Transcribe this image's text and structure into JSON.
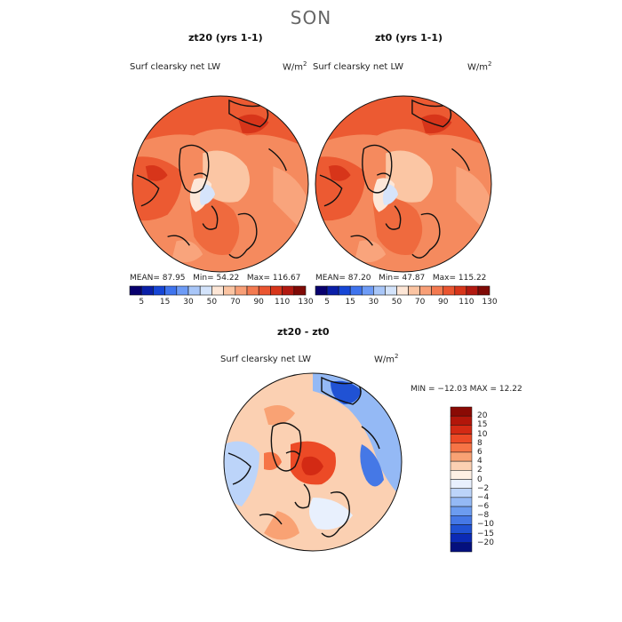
{
  "main_title": "SON",
  "panels": [
    {
      "title": "zt20 (yrs 1-1)",
      "label": "Surf clearsky net LW",
      "units": "W/m",
      "units_sup": "2",
      "stats": {
        "mean_label": "MEAN=",
        "mean": "87.95",
        "min_label": "Min=",
        "min": "54.22",
        "max_label": "Max=",
        "max": "116.67"
      }
    },
    {
      "title": "zt0 (yrs 1-1)",
      "label": "Surf clearsky net LW",
      "units": "W/m",
      "units_sup": "2",
      "stats": {
        "mean_label": "MEAN=",
        "mean": "87.20",
        "min_label": "Min=",
        "min": "47.87",
        "max_label": "Max=",
        "max": "115.22"
      }
    }
  ],
  "abs_colorbar": {
    "colors": [
      "#08006e",
      "#0a1fa8",
      "#1646d6",
      "#3f74ee",
      "#6d9bf6",
      "#a8c6f8",
      "#d3e3fb",
      "#fde6d6",
      "#fbc4a2",
      "#f89f77",
      "#f37a50",
      "#ea5530",
      "#d7351a",
      "#b21910",
      "#7f0a06"
    ],
    "ticks": [
      "5",
      "15",
      "30",
      "50",
      "70",
      "90",
      "110",
      "130"
    ]
  },
  "diff_panel": {
    "title": "zt20 - zt0",
    "label": "Surf clearsky net LW",
    "units": "W/m",
    "units_sup": "2",
    "minmax": "MIN = −12.03 MAX =  12.22"
  },
  "diff_colorbar": {
    "colors": [
      "#8a0a04",
      "#b2160a",
      "#d32a14",
      "#ec4a26",
      "#f67446",
      "#f9a274",
      "#fbd0b2",
      "#fef0e4",
      "#e8f0fd",
      "#bcd4f9",
      "#94b9f5",
      "#6c9cf0",
      "#4578e6",
      "#2052d4",
      "#0b2ab6",
      "#04107e"
    ],
    "ticks": [
      "20",
      "15",
      "10",
      "8",
      "6",
      "4",
      "2",
      "0",
      "−2",
      "−4",
      "−6",
      "−8",
      "−10",
      "−15",
      "−20"
    ]
  }
}
